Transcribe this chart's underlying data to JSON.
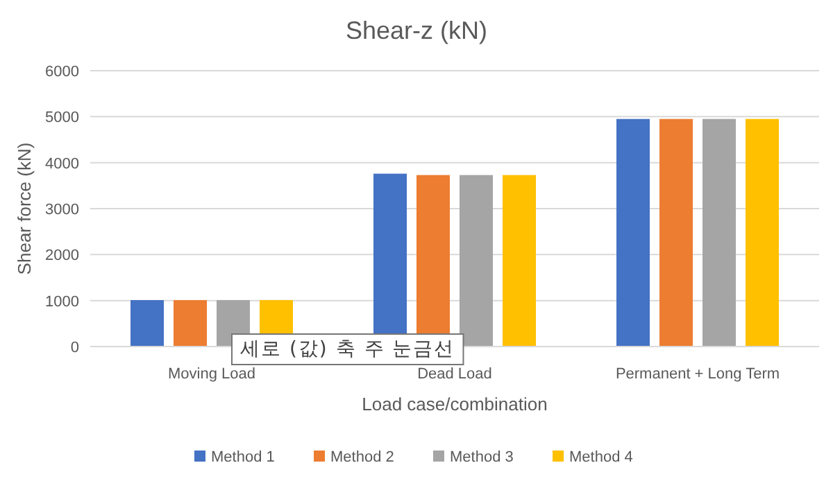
{
  "chart_data": {
    "type": "bar",
    "title": "Shear-z (kN)",
    "xlabel": "Load case/combination",
    "ylabel": "Shear force (kN)",
    "categories": [
      "Moving Load",
      "Dead Load",
      "Permanent + Long Term"
    ],
    "series": [
      {
        "name": "Method 1",
        "color": "#4472c4",
        "values": [
          1010,
          3760,
          4950
        ]
      },
      {
        "name": "Method 2",
        "color": "#ed7d31",
        "values": [
          1010,
          3730,
          4950
        ]
      },
      {
        "name": "Method 3",
        "color": "#a5a5a5",
        "values": [
          1010,
          3730,
          4950
        ]
      },
      {
        "name": "Method 4",
        "color": "#ffc000",
        "values": [
          1010,
          3730,
          4950
        ]
      }
    ],
    "ylim": [
      0,
      6000
    ],
    "yticks": [
      0,
      1000,
      2000,
      3000,
      4000,
      5000,
      6000
    ],
    "grid": "y",
    "legend": "bottom",
    "annotations": [
      "세로 (값) 축 주 눈금선"
    ]
  }
}
